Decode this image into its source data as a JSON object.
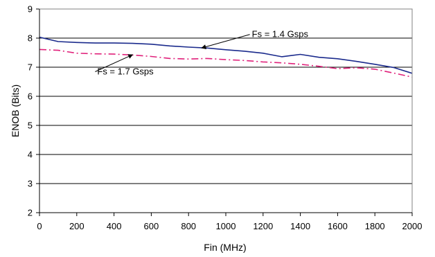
{
  "chart_data": {
    "type": "line",
    "xlabel": "Fin (MHz)",
    "ylabel": "ENOB (Bits)",
    "xlim": [
      0,
      2000
    ],
    "ylim": [
      2,
      9
    ],
    "xticks": [
      0,
      200,
      400,
      600,
      800,
      1000,
      1200,
      1400,
      1600,
      1800,
      2000
    ],
    "yticks": [
      2,
      3,
      4,
      5,
      6,
      7,
      8,
      9
    ],
    "grid": "horizontal",
    "legend": "none",
    "series": [
      {
        "name": "Fs = 1.4 Gsps",
        "color": "#1a2a8c",
        "style": "solid",
        "x": [
          0,
          100,
          200,
          300,
          400,
          500,
          600,
          700,
          800,
          900,
          1000,
          1100,
          1200,
          1300,
          1350,
          1400,
          1500,
          1600,
          1700,
          1800,
          1900,
          2000
        ],
        "y": [
          8.03,
          7.88,
          7.85,
          7.83,
          7.83,
          7.82,
          7.79,
          7.73,
          7.69,
          7.66,
          7.6,
          7.55,
          7.48,
          7.36,
          7.4,
          7.44,
          7.34,
          7.29,
          7.2,
          7.1,
          6.99,
          6.79
        ]
      },
      {
        "name": "Fs = 1.7 Gsps",
        "color": "#e0207a",
        "style": "dashdot",
        "x": [
          0,
          100,
          200,
          300,
          400,
          500,
          600,
          700,
          800,
          900,
          1000,
          1100,
          1200,
          1300,
          1400,
          1500,
          1600,
          1700,
          1800,
          1900,
          2000
        ],
        "y": [
          7.61,
          7.58,
          7.48,
          7.46,
          7.45,
          7.42,
          7.37,
          7.3,
          7.28,
          7.3,
          7.26,
          7.23,
          7.18,
          7.15,
          7.1,
          7.03,
          6.95,
          6.98,
          6.93,
          6.8,
          6.66
        ]
      }
    ],
    "annotations": [
      {
        "text": "Fs = 1.4 Gsps",
        "x": 1140,
        "y": 8.03,
        "arrow_to": [
          870,
          7.66
        ]
      },
      {
        "text": "Fs = 1.7 Gsps",
        "x": 310,
        "y": 6.75,
        "arrow_to": [
          500,
          7.43
        ]
      }
    ]
  }
}
